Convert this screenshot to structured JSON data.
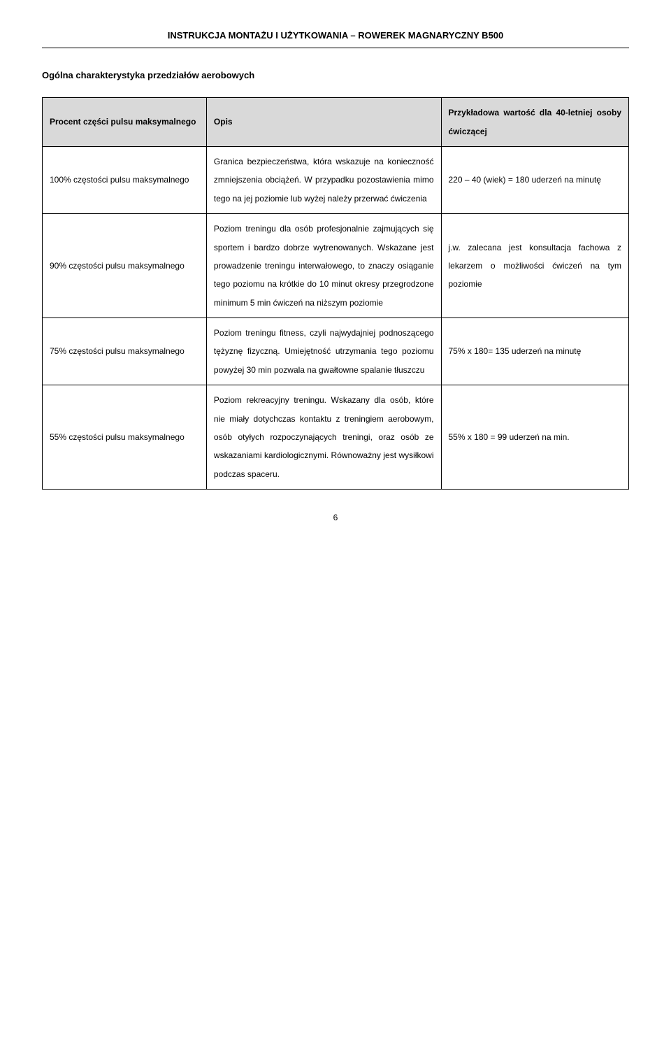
{
  "header": {
    "title": "INSTRUKCJA MONTAŻU I UŻYTKOWANIA – ROWEREK MAGNARYCZNY B500"
  },
  "section": {
    "title": "Ogólna charakterystyka przedziałów aerobowych"
  },
  "table": {
    "head": {
      "col1": "Procent części pulsu maksymalnego",
      "col2": "Opis",
      "col3": "Przykładowa wartość dla 40-letniej osoby ćwiczącej"
    },
    "rows": [
      {
        "percent": "100% częstości pulsu maksymalnego",
        "desc": "Granica bezpieczeństwa, która wskazuje na konieczność zmniejszenia obciążeń. W przypadku pozostawienia mimo tego na jej poziomie lub wyżej należy przerwać ćwiczenia",
        "example": "220 – 40 (wiek) = 180 uderzeń na minutę"
      },
      {
        "percent": "90% częstości pulsu maksymalnego",
        "desc": "Poziom treningu dla osób profesjonalnie zajmujących się sportem i bardzo dobrze wytrenowanych. Wskazane jest prowadzenie treningu interwałowego, to znaczy osiąganie tego poziomu na krótkie do 10 minut okresy przegrodzone minimum 5 min ćwiczeń na niższym poziomie",
        "example": "j.w. zalecana jest konsultacja fachowa z lekarzem o możliwości ćwiczeń na tym poziomie"
      },
      {
        "percent": "75% częstości pulsu maksymalnego",
        "desc": "Poziom treningu fitness, czyli najwydajniej podnoszącego tężyznę fizyczną. Umiejętność utrzymania tego poziomu powyżej 30 min pozwala na gwałtowne spalanie tłuszczu",
        "example": "75% x 180= 135 uderzeń na minutę"
      },
      {
        "percent": "55% częstości pulsu maksymalnego",
        "desc": "Poziom rekreacyjny treningu. Wskazany dla osób, które nie miały dotychczas kontaktu z treningiem aerobowym, osób otyłych rozpoczynających treningi, oraz osób ze wskazaniami kardiologicznymi. Równoważny jest wysiłkowi podczas spaceru.",
        "example": "55% x 180 = 99 uderzeń na min."
      }
    ]
  },
  "page": {
    "number": "6"
  }
}
